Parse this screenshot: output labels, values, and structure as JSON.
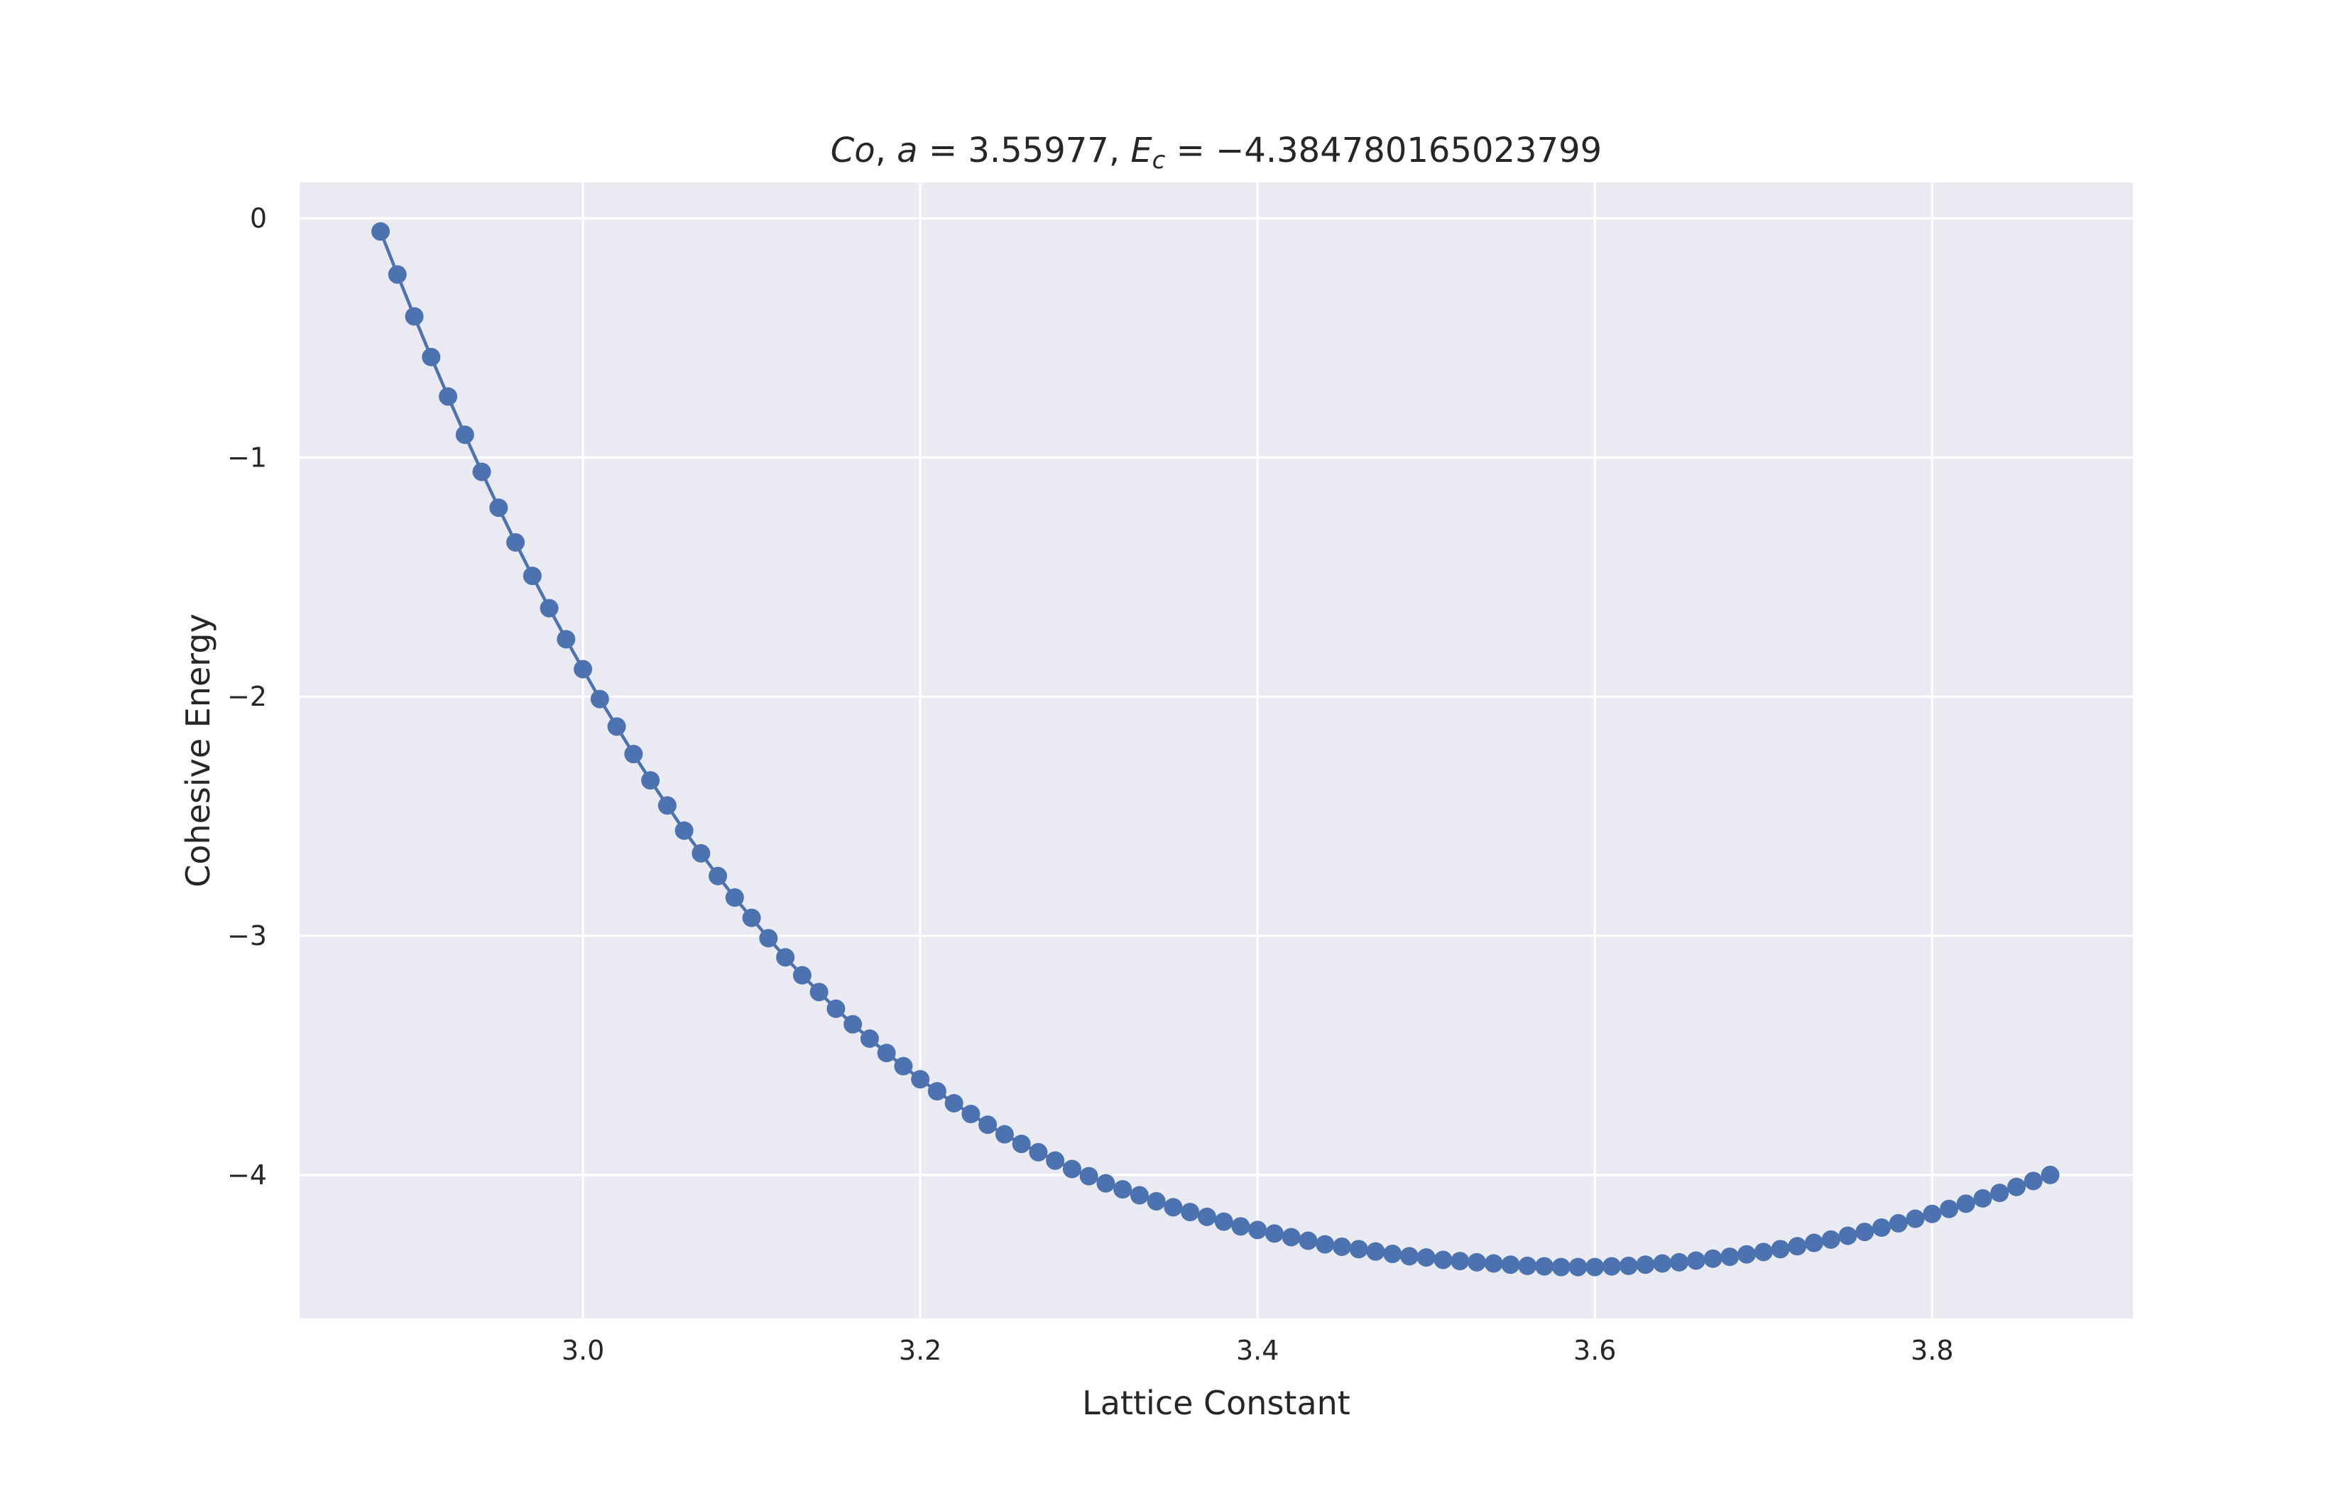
{
  "chart_data": {
    "type": "line",
    "title": {
      "prefix_italic": "Co",
      "sep1": ", ",
      "a_symbol": "a",
      "a_value": " = 3.55977, ",
      "e_symbol": "E",
      "e_subscript": "c",
      "e_value": " = −4.384780165023799",
      "full": "Co, a = 3.55977, E_c = −4.384780165023799"
    },
    "xlabel": "Lattice Constant",
    "ylabel": "Cohesive Energy",
    "xlim": [
      2.832,
      3.919
    ],
    "ylim": [
      -4.6,
      0.15
    ],
    "xticks": [
      3.0,
      3.2,
      3.4,
      3.6,
      3.8
    ],
    "xtick_labels": [
      "3.0",
      "3.2",
      "3.4",
      "3.6",
      "3.8"
    ],
    "yticks": [
      0,
      -1,
      -2,
      -3,
      -4
    ],
    "ytick_labels": [
      "0",
      "−1",
      "−2",
      "−3",
      "−4"
    ],
    "grid": true,
    "style": "seaborn-darkgrid",
    "series": [
      {
        "color": "#4c72b0",
        "marker": "circle",
        "x": [
          2.88,
          2.89,
          2.9,
          2.91,
          2.92,
          2.93,
          2.94,
          2.95,
          2.96,
          2.97,
          2.98,
          2.99,
          3.0,
          3.01,
          3.02,
          3.03,
          3.04,
          3.05,
          3.06,
          3.07,
          3.08,
          3.09,
          3.1,
          3.11,
          3.12,
          3.13,
          3.14,
          3.15,
          3.16,
          3.17,
          3.18,
          3.19,
          3.2,
          3.21,
          3.22,
          3.23,
          3.24,
          3.25,
          3.26,
          3.27,
          3.28,
          3.29,
          3.3,
          3.31,
          3.32,
          3.33,
          3.34,
          3.35,
          3.36,
          3.37,
          3.38,
          3.39,
          3.4,
          3.41,
          3.42,
          3.43,
          3.44,
          3.45,
          3.46,
          3.47,
          3.48,
          3.49,
          3.5,
          3.51,
          3.52,
          3.53,
          3.54,
          3.55,
          3.56,
          3.57,
          3.58,
          3.59,
          3.6,
          3.61,
          3.62,
          3.63,
          3.64,
          3.65,
          3.66,
          3.67,
          3.68,
          3.69,
          3.7,
          3.71,
          3.72,
          3.73,
          3.74,
          3.75,
          3.76,
          3.77,
          3.78,
          3.79,
          3.8,
          3.81,
          3.82,
          3.83,
          3.84,
          3.85,
          3.86,
          3.87
        ],
        "y": [
          -0.055,
          -0.235,
          -0.41,
          -0.58,
          -0.745,
          -0.905,
          -1.06,
          -1.21,
          -1.355,
          -1.495,
          -1.63,
          -1.76,
          -1.885,
          -2.01,
          -2.125,
          -2.24,
          -2.35,
          -2.455,
          -2.56,
          -2.655,
          -2.75,
          -2.84,
          -2.925,
          -3.01,
          -3.09,
          -3.165,
          -3.235,
          -3.305,
          -3.37,
          -3.43,
          -3.49,
          -3.545,
          -3.6,
          -3.65,
          -3.7,
          -3.745,
          -3.79,
          -3.83,
          -3.87,
          -3.905,
          -3.94,
          -3.975,
          -4.005,
          -4.035,
          -4.06,
          -4.085,
          -4.11,
          -4.135,
          -4.155,
          -4.175,
          -4.195,
          -4.215,
          -4.23,
          -4.245,
          -4.26,
          -4.275,
          -4.29,
          -4.3,
          -4.31,
          -4.32,
          -4.33,
          -4.34,
          -4.345,
          -4.355,
          -4.36,
          -4.365,
          -4.37,
          -4.375,
          -4.38,
          -4.382,
          -4.385,
          -4.385,
          -4.385,
          -4.382,
          -4.38,
          -4.375,
          -4.37,
          -4.365,
          -4.358,
          -4.35,
          -4.342,
          -4.332,
          -4.322,
          -4.31,
          -4.298,
          -4.284,
          -4.27,
          -4.254,
          -4.238,
          -4.22,
          -4.202,
          -4.183,
          -4.163,
          -4.142,
          -4.12,
          -4.098,
          -4.075,
          -4.05,
          -4.025,
          -4.0
        ]
      }
    ]
  }
}
